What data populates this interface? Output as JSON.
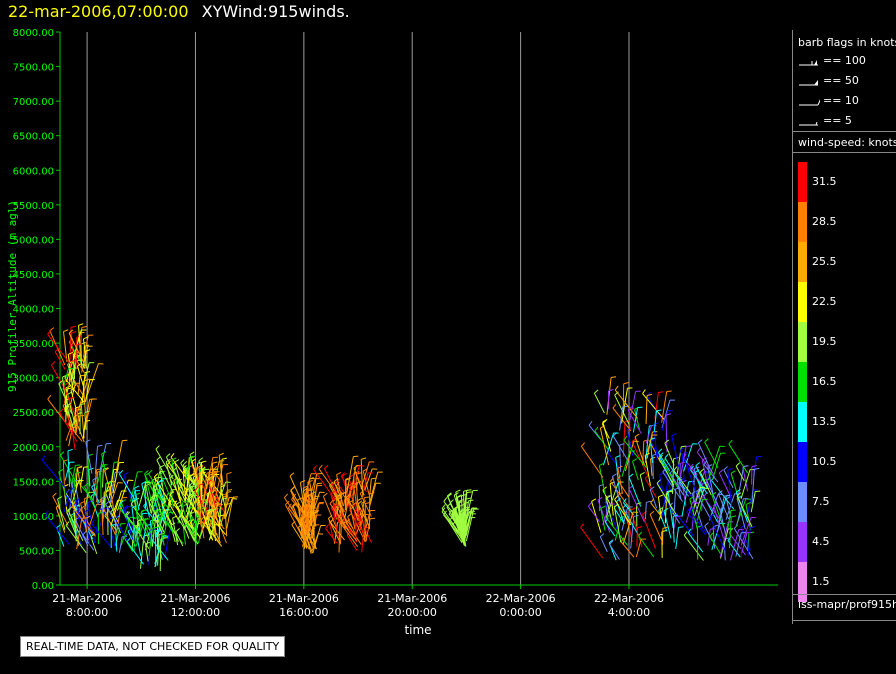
{
  "header": {
    "date_label": "22-mar-2006,07:00:00",
    "title": "XYWind:915winds."
  },
  "chart_data": {
    "type": "scatter",
    "title": "XYWind:915winds.",
    "ylabel": "915 Profiler Altitude (m agl)",
    "xlabel": "time",
    "ylim": [
      0,
      8000
    ],
    "yticks": [
      "0.00",
      "500.00",
      "1000.00",
      "1500.00",
      "2000.00",
      "2500.00",
      "3000.00",
      "3500.00",
      "4000.00",
      "4500.00",
      "5000.00",
      "5500.00",
      "6000.00",
      "6500.00",
      "7000.00",
      "7500.00",
      "8000.00"
    ],
    "xlim_hours": [
      -1,
      25.5
    ],
    "xticks": [
      {
        "hour": 0,
        "date": "21-Mar-2006",
        "time": "8:00:00"
      },
      {
        "hour": 4,
        "date": "21-Mar-2006",
        "time": "12:00:00"
      },
      {
        "hour": 8,
        "date": "21-Mar-2006",
        "time": "16:00:00"
      },
      {
        "hour": 12,
        "date": "21-Mar-2006",
        "time": "20:00:00"
      },
      {
        "hour": 16,
        "date": "22-Mar-2006",
        "time": "0:00:00"
      },
      {
        "hour": 20,
        "date": "22-Mar-2006",
        "time": "4:00:00"
      }
    ],
    "grid": "vertical",
    "clusters": [
      {
        "t": [
          -0.9,
          0.0
        ],
        "alt": [
          1950,
          3300
        ],
        "speed": [
          17,
          32
        ]
      },
      {
        "t": [
          -0.9,
          1.3
        ],
        "alt": [
          450,
          1650
        ],
        "speed": [
          6,
          30
        ]
      },
      {
        "t": [
          1.6,
          3.0
        ],
        "alt": [
          200,
          1250
        ],
        "speed": [
          11,
          21
        ]
      },
      {
        "t": [
          3.1,
          4.2
        ],
        "alt": [
          500,
          1550
        ],
        "speed": [
          16,
          23
        ]
      },
      {
        "t": [
          4.2,
          5.2
        ],
        "alt": [
          550,
          1450
        ],
        "speed": [
          20,
          31
        ]
      },
      {
        "t": [
          7.9,
          8.5
        ],
        "alt": [
          450,
          1150
        ],
        "speed": [
          24,
          30
        ]
      },
      {
        "t": [
          9.1,
          10.5
        ],
        "alt": [
          450,
          1400
        ],
        "speed": [
          25,
          33
        ]
      },
      {
        "t": [
          13.8,
          14.0
        ],
        "alt": [
          550,
          850
        ],
        "speed": [
          18,
          21
        ]
      },
      {
        "t": [
          18.9,
          21.5
        ],
        "alt": [
          350,
          2550
        ],
        "speed": [
          3,
          32
        ]
      },
      {
        "t": [
          21.5,
          24.6
        ],
        "alt": [
          350,
          1750
        ],
        "speed": [
          3,
          20
        ]
      }
    ]
  },
  "legend": {
    "barb_title": "barb flags in knots",
    "barbs": [
      "== 100",
      "== 50",
      "== 10",
      "== 5"
    ],
    "speed_title": "wind-speed: knots",
    "colorbar": [
      {
        "label": "31.5",
        "color": "#ff0000"
      },
      {
        "label": "28.5",
        "color": "#ff8000"
      },
      {
        "label": "25.5",
        "color": "#ffaa00"
      },
      {
        "label": "22.5",
        "color": "#ffff00"
      },
      {
        "label": "19.5",
        "color": "#a0ff40"
      },
      {
        "label": "16.5",
        "color": "#00e000"
      },
      {
        "label": "13.5",
        "color": "#00ffff"
      },
      {
        "label": "10.5",
        "color": "#0000ff"
      },
      {
        "label": "7.5",
        "color": "#6a8cff"
      },
      {
        "label": "4.5",
        "color": "#9933ff"
      },
      {
        "label": "1.5",
        "color": "#ee82ee"
      }
    ],
    "source": "iss-mapr/prof915h"
  },
  "footer": {
    "disclaimer": "REAL-TIME DATA, NOT CHECKED FOR QUALITY"
  }
}
